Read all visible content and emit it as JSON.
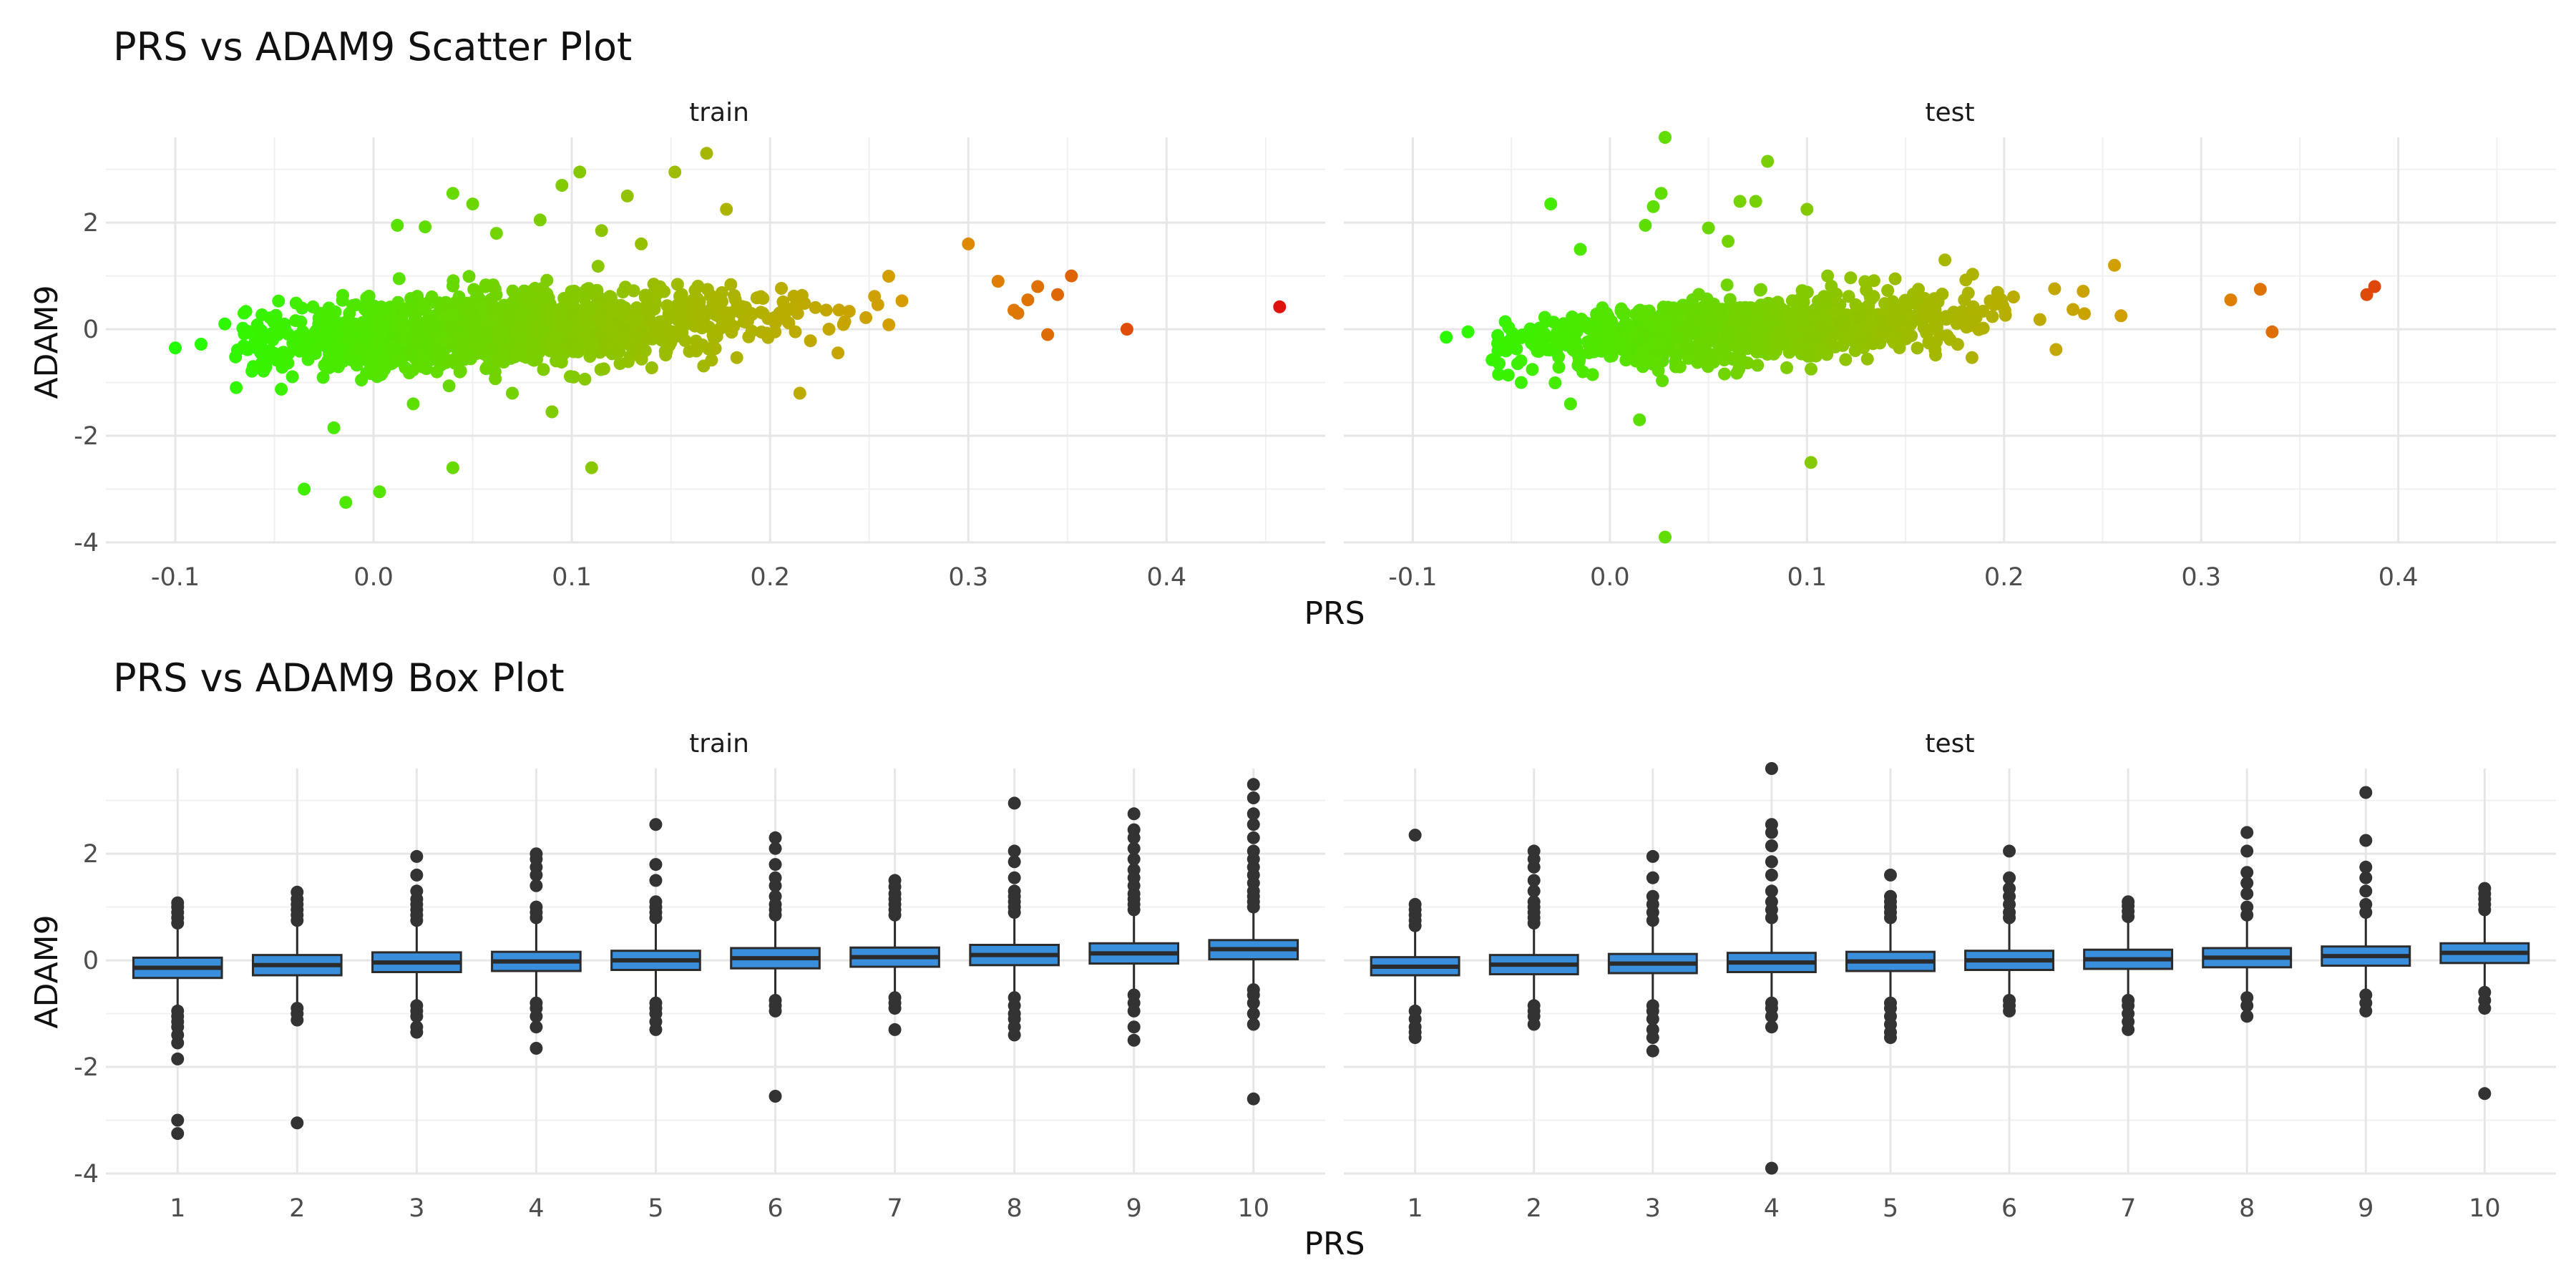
{
  "chart_data": [
    {
      "type": "scatter",
      "title": "PRS vs ADAM9 Scatter Plot",
      "xlabel": "PRS",
      "ylabel": "ADAM9",
      "xlim": [
        -0.135,
        0.48
      ],
      "ylim": [
        -4.0,
        3.6
      ],
      "xticks": [
        -0.1,
        0.0,
        0.1,
        0.2,
        0.3,
        0.4
      ],
      "xtick_labels": [
        "-0.1",
        "0.0",
        "0.1",
        "0.2",
        "0.3",
        "0.4"
      ],
      "yticks": [
        -4,
        -2,
        0,
        2
      ],
      "ytick_labels": [
        "-4",
        "-2",
        "0",
        "2"
      ],
      "grid": true,
      "legend": "none",
      "color_gradient": {
        "low": "#22ff00",
        "mid": "#dd9900",
        "high": "#e01010",
        "range": [
          -0.1,
          0.46
        ]
      },
      "panels": [
        {
          "name": "train",
          "cloud": {
            "count": 1400,
            "x_center": 0.07,
            "x_spread": 0.065,
            "y_spread": 0.33,
            "x_min": -0.07,
            "x_max": 0.34,
            "slope": 2.0
          },
          "outliers": [
            {
              "x": -0.1,
              "y": -0.35
            },
            {
              "x": -0.087,
              "y": -0.28
            },
            {
              "x": -0.075,
              "y": 0.1
            },
            {
              "x": -0.035,
              "y": -3.0
            },
            {
              "x": -0.014,
              "y": -3.25
            },
            {
              "x": 0.003,
              "y": -3.05
            },
            {
              "x": 0.04,
              "y": -2.6
            },
            {
              "x": 0.11,
              "y": -2.6
            },
            {
              "x": -0.02,
              "y": -1.85
            },
            {
              "x": 0.09,
              "y": -1.55
            },
            {
              "x": 0.215,
              "y": -1.2
            },
            {
              "x": 0.04,
              "y": 2.55
            },
            {
              "x": 0.05,
              "y": 2.35
            },
            {
              "x": 0.095,
              "y": 2.7
            },
            {
              "x": 0.104,
              "y": 2.95
            },
            {
              "x": 0.128,
              "y": 2.5
            },
            {
              "x": 0.152,
              "y": 2.95
            },
            {
              "x": 0.168,
              "y": 3.3
            },
            {
              "x": 0.178,
              "y": 2.25
            },
            {
              "x": 0.3,
              "y": 1.6
            },
            {
              "x": 0.315,
              "y": 0.9
            },
            {
              "x": 0.325,
              "y": 0.3
            },
            {
              "x": 0.33,
              "y": 0.55
            },
            {
              "x": 0.335,
              "y": 0.8
            },
            {
              "x": 0.34,
              "y": -0.1
            },
            {
              "x": 0.345,
              "y": 0.65
            },
            {
              "x": 0.352,
              "y": 1.0
            },
            {
              "x": 0.38,
              "y": 0.0
            },
            {
              "x": 0.457,
              "y": 0.42
            },
            {
              "x": 0.012,
              "y": 1.95
            },
            {
              "x": 0.026,
              "y": 1.92
            },
            {
              "x": 0.062,
              "y": 1.8
            },
            {
              "x": 0.084,
              "y": 2.05
            },
            {
              "x": 0.115,
              "y": 1.85
            },
            {
              "x": 0.135,
              "y": 1.6
            },
            {
              "x": 0.07,
              "y": -1.2
            },
            {
              "x": 0.02,
              "y": -1.4
            }
          ]
        },
        {
          "name": "test",
          "cloud": {
            "count": 1000,
            "x_center": 0.07,
            "x_spread": 0.06,
            "y_spread": 0.3,
            "x_min": -0.06,
            "x_max": 0.33,
            "slope": 2.0
          },
          "outliers": [
            {
              "x": -0.083,
              "y": -0.15
            },
            {
              "x": -0.072,
              "y": -0.05
            },
            {
              "x": -0.03,
              "y": 2.35
            },
            {
              "x": -0.015,
              "y": 1.5
            },
            {
              "x": 0.028,
              "y": 3.6
            },
            {
              "x": 0.08,
              "y": 3.15
            },
            {
              "x": 0.1,
              "y": 2.25
            },
            {
              "x": 0.066,
              "y": 2.4
            },
            {
              "x": 0.074,
              "y": 2.4
            },
            {
              "x": 0.022,
              "y": 2.3
            },
            {
              "x": 0.026,
              "y": 2.55
            },
            {
              "x": 0.018,
              "y": 1.95
            },
            {
              "x": 0.028,
              "y": -3.9
            },
            {
              "x": 0.102,
              "y": -2.5
            },
            {
              "x": -0.045,
              "y": -1.0
            },
            {
              "x": 0.015,
              "y": -1.7
            },
            {
              "x": -0.02,
              "y": -1.4
            },
            {
              "x": 0.384,
              "y": 0.65
            },
            {
              "x": 0.388,
              "y": 0.8
            },
            {
              "x": 0.336,
              "y": -0.05
            },
            {
              "x": 0.33,
              "y": 0.75
            },
            {
              "x": 0.315,
              "y": 0.55
            },
            {
              "x": 0.256,
              "y": 1.2
            },
            {
              "x": 0.05,
              "y": 1.9
            },
            {
              "x": 0.06,
              "y": 1.65
            },
            {
              "x": 0.17,
              "y": 1.3
            }
          ]
        }
      ]
    },
    {
      "type": "box",
      "title": "PRS vs ADAM9 Box Plot",
      "xlabel": "PRS",
      "ylabel": "ADAM9",
      "categories": [
        "1",
        "2",
        "3",
        "4",
        "5",
        "6",
        "7",
        "8",
        "9",
        "10"
      ],
      "ylim": [
        -4.0,
        3.6
      ],
      "yticks": [
        -4,
        -2,
        0,
        2
      ],
      "ytick_labels": [
        "-4",
        "-2",
        "0",
        "2"
      ],
      "grid": true,
      "box_fill": "#3a8fdc",
      "box_stroke": "#2b2b2b",
      "panels": [
        {
          "name": "train",
          "boxes": [
            {
              "category": "1",
              "q1": -0.33,
              "median": -0.14,
              "q3": 0.05,
              "whisker_low": -0.9,
              "whisker_high": 0.62,
              "outliers": [
                0.7,
                0.8,
                0.9,
                1.0,
                1.08,
                -0.95,
                -1.05,
                -1.15,
                -1.25,
                -1.4,
                -1.55,
                -1.85,
                -3.0,
                -3.25
              ]
            },
            {
              "category": "2",
              "q1": -0.28,
              "median": -0.09,
              "q3": 0.1,
              "whisker_low": -0.85,
              "whisker_high": 0.67,
              "outliers": [
                0.75,
                0.85,
                0.95,
                1.05,
                1.15,
                1.28,
                -0.9,
                -1.0,
                -1.12,
                -3.05
              ]
            },
            {
              "category": "3",
              "q1": -0.22,
              "median": -0.04,
              "q3": 0.15,
              "whisker_low": -0.78,
              "whisker_high": 0.7,
              "outliers": [
                0.75,
                0.85,
                0.95,
                1.05,
                1.15,
                1.3,
                1.6,
                1.95,
                -0.85,
                -0.95,
                -1.05,
                -1.25,
                -1.35
              ]
            },
            {
              "category": "4",
              "q1": -0.2,
              "median": -0.02,
              "q3": 0.16,
              "whisker_low": -0.75,
              "whisker_high": 0.72,
              "outliers": [
                0.8,
                0.9,
                1.0,
                1.4,
                1.6,
                1.75,
                1.9,
                2.0,
                -0.8,
                -0.9,
                -1.05,
                -1.25,
                -1.65
              ]
            },
            {
              "category": "5",
              "q1": -0.18,
              "median": 0.0,
              "q3": 0.18,
              "whisker_low": -0.72,
              "whisker_high": 0.74,
              "outliers": [
                0.8,
                0.9,
                1.0,
                1.1,
                1.5,
                1.8,
                2.55,
                -0.8,
                -0.9,
                -1.0,
                -1.15,
                -1.3
              ]
            },
            {
              "category": "6",
              "q1": -0.15,
              "median": 0.04,
              "q3": 0.23,
              "whisker_low": -0.7,
              "whisker_high": 0.8,
              "outliers": [
                0.85,
                0.95,
                1.05,
                1.2,
                1.4,
                1.55,
                1.8,
                2.1,
                2.3,
                -0.75,
                -0.85,
                -0.95,
                -2.55
              ]
            },
            {
              "category": "7",
              "q1": -0.12,
              "median": 0.06,
              "q3": 0.24,
              "whisker_low": -0.65,
              "whisker_high": 0.8,
              "outliers": [
                0.85,
                0.95,
                1.05,
                1.15,
                1.25,
                1.38,
                1.5,
                -0.7,
                -0.8,
                -0.9,
                -1.3
              ]
            },
            {
              "category": "8",
              "q1": -0.09,
              "median": 0.1,
              "q3": 0.29,
              "whisker_low": -0.62,
              "whisker_high": 0.85,
              "outliers": [
                0.9,
                1.0,
                1.1,
                1.2,
                1.3,
                1.55,
                1.85,
                2.05,
                2.95,
                -0.7,
                -0.85,
                -1.0,
                -1.1,
                -1.25,
                -1.4
              ]
            },
            {
              "category": "9",
              "q1": -0.06,
              "median": 0.13,
              "q3": 0.32,
              "whisker_low": -0.6,
              "whisker_high": 0.88,
              "outliers": [
                0.95,
                1.05,
                1.15,
                1.25,
                1.4,
                1.55,
                1.7,
                1.9,
                2.1,
                2.3,
                2.45,
                2.75,
                -0.65,
                -0.8,
                -0.95,
                -1.25,
                -1.5
              ]
            },
            {
              "category": "10",
              "q1": 0.02,
              "median": 0.21,
              "q3": 0.38,
              "whisker_low": -0.5,
              "whisker_high": 0.95,
              "outliers": [
                1.0,
                1.1,
                1.2,
                1.3,
                1.45,
                1.6,
                1.75,
                1.9,
                2.05,
                2.3,
                2.55,
                2.75,
                3.05,
                3.3,
                -0.55,
                -0.65,
                -0.8,
                -1.0,
                -1.2,
                -2.6
              ]
            }
          ]
        },
        {
          "name": "test",
          "boxes": [
            {
              "category": "1",
              "q1": -0.28,
              "median": -0.12,
              "q3": 0.06,
              "whisker_low": -0.85,
              "whisker_high": 0.6,
              "outliers": [
                0.65,
                0.75,
                0.85,
                0.95,
                1.05,
                -0.95,
                -1.1,
                -1.25,
                -1.35,
                -1.45,
                2.35
              ]
            },
            {
              "category": "2",
              "q1": -0.26,
              "median": -0.08,
              "q3": 0.1,
              "whisker_low": -0.8,
              "whisker_high": 0.65,
              "outliers": [
                0.7,
                0.8,
                0.9,
                1.0,
                1.1,
                1.3,
                1.5,
                1.75,
                1.9,
                2.05,
                -0.85,
                -0.95,
                -1.05,
                -1.2
              ]
            },
            {
              "category": "3",
              "q1": -0.24,
              "median": -0.06,
              "q3": 0.12,
              "whisker_low": -0.78,
              "whisker_high": 0.68,
              "outliers": [
                0.75,
                0.9,
                1.05,
                1.2,
                1.55,
                1.95,
                -0.85,
                -0.95,
                -1.1,
                -1.3,
                -1.45,
                -1.7
              ]
            },
            {
              "category": "4",
              "q1": -0.22,
              "median": -0.04,
              "q3": 0.14,
              "whisker_low": -0.75,
              "whisker_high": 0.7,
              "outliers": [
                0.8,
                0.95,
                1.1,
                1.3,
                1.6,
                1.85,
                2.15,
                2.4,
                2.55,
                3.6,
                -0.8,
                -0.9,
                -1.05,
                -1.25,
                -3.9
              ]
            },
            {
              "category": "5",
              "q1": -0.2,
              "median": -0.02,
              "q3": 0.16,
              "whisker_low": -0.72,
              "whisker_high": 0.72,
              "outliers": [
                0.8,
                0.9,
                1.0,
                1.1,
                1.2,
                1.6,
                -0.8,
                -0.9,
                -1.05,
                -1.2,
                -1.35,
                -1.45
              ]
            },
            {
              "category": "6",
              "q1": -0.18,
              "median": 0.0,
              "q3": 0.18,
              "whisker_low": -0.7,
              "whisker_high": 0.74,
              "outliers": [
                0.8,
                0.9,
                1.05,
                1.2,
                1.35,
                1.55,
                2.05,
                -0.75,
                -0.85,
                -0.95
              ]
            },
            {
              "category": "7",
              "q1": -0.16,
              "median": 0.02,
              "q3": 0.2,
              "whisker_low": -0.68,
              "whisker_high": 0.76,
              "outliers": [
                0.82,
                0.92,
                1.02,
                1.1,
                -0.75,
                -0.85,
                -1.0,
                -1.15,
                -1.3
              ]
            },
            {
              "category": "8",
              "q1": -0.13,
              "median": 0.05,
              "q3": 0.23,
              "whisker_low": -0.65,
              "whisker_high": 0.8,
              "outliers": [
                0.85,
                1.0,
                1.25,
                1.45,
                1.65,
                2.05,
                2.4,
                -0.7,
                -0.85,
                -1.05
              ]
            },
            {
              "category": "9",
              "q1": -0.1,
              "median": 0.08,
              "q3": 0.26,
              "whisker_low": -0.62,
              "whisker_high": 0.82,
              "outliers": [
                0.9,
                1.05,
                1.3,
                1.55,
                1.75,
                2.25,
                3.15,
                -0.65,
                -0.8,
                -0.95
              ]
            },
            {
              "category": "10",
              "q1": -0.05,
              "median": 0.14,
              "q3": 0.32,
              "whisker_low": -0.55,
              "whisker_high": 0.88,
              "outliers": [
                0.95,
                1.05,
                1.15,
                1.25,
                1.35,
                -0.6,
                -0.75,
                -0.9,
                -2.5
              ]
            }
          ]
        }
      ]
    }
  ]
}
